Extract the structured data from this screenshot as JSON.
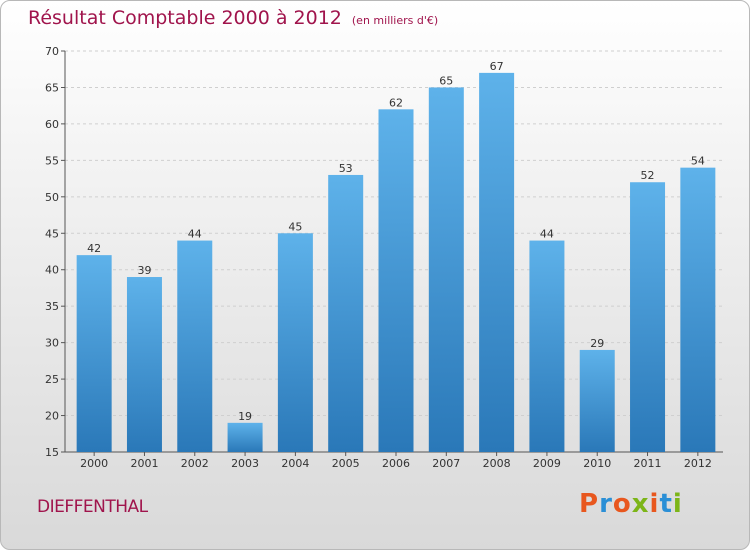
{
  "chart_data": {
    "type": "bar",
    "title": "Résultat Comptable 2000 à 2012",
    "subtitle": "(en milliers d'€)",
    "categories": [
      "2000",
      "2001",
      "2002",
      "2003",
      "2004",
      "2005",
      "2006",
      "2007",
      "2008",
      "2009",
      "2010",
      "2011",
      "2012"
    ],
    "values": [
      42,
      39,
      44,
      19,
      45,
      53,
      62,
      65,
      67,
      44,
      29,
      52,
      54
    ],
    "ylim": [
      15,
      70
    ],
    "yticks": [
      15,
      20,
      25,
      30,
      35,
      40,
      45,
      50,
      55,
      60,
      65,
      70
    ],
    "xlabel": "",
    "ylabel": "",
    "grid": true
  },
  "footer": {
    "commune": "DIEFFENTHAL",
    "logo": "Proxiti"
  },
  "colors": {
    "bar_light": "#5eb2ea",
    "bar_dark": "#2a78b8",
    "title": "#a0144c",
    "logo_letters": [
      "#e8571e",
      "#2a8fd6",
      "#e8571e",
      "#7cb518",
      "#e8571e",
      "#2a8fd6",
      "#7cb518"
    ]
  }
}
